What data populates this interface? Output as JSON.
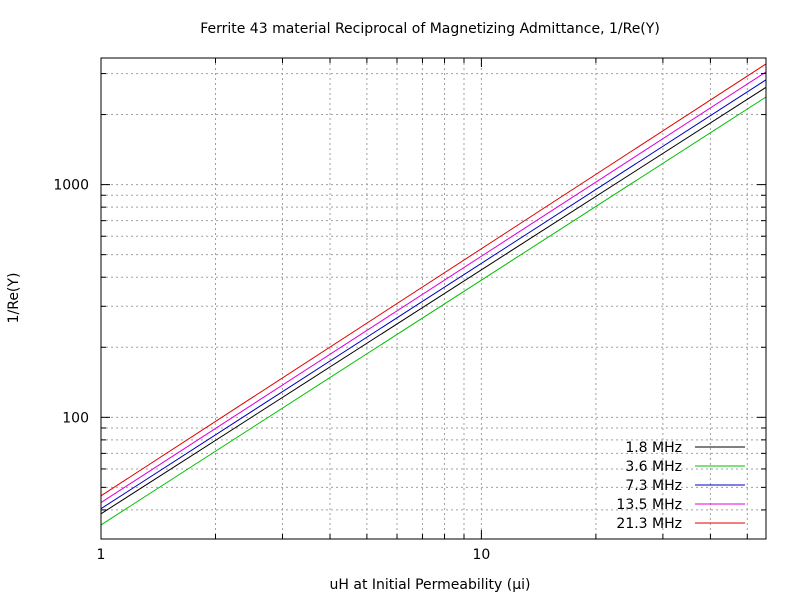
{
  "chart_data": {
    "type": "line",
    "title": "Ferrite 43 material Reciprocal of Magnetizing Admittance, 1/Re(Y)",
    "xlabel": "uH at Initial Permeability (µi)",
    "ylabel": "1/Re(Y)",
    "x_scale": "log",
    "y_scale": "log",
    "xlim": [
      1,
      56
    ],
    "ylim": [
      30,
      3500
    ],
    "grid": true,
    "legend_position": "bottom-right",
    "x_ticks": [
      {
        "value": 1,
        "label": "1"
      },
      {
        "value": 10,
        "label": "10"
      }
    ],
    "y_ticks": [
      {
        "value": 100,
        "label": "100"
      },
      {
        "value": 1000,
        "label": "1000"
      }
    ],
    "series": [
      {
        "name": "1.8 MHz",
        "color": "#000000",
        "x": [
          1,
          56
        ],
        "y": [
          38.5,
          2620
        ]
      },
      {
        "name": "3.6 MHz",
        "color": "#00c000",
        "x": [
          1,
          56
        ],
        "y": [
          34.5,
          2380
        ]
      },
      {
        "name": "7.3 MHz",
        "color": "#0000c0",
        "x": [
          1,
          56
        ],
        "y": [
          40.5,
          2820
        ]
      },
      {
        "name": "13.5 MHz",
        "color": "#e000e0",
        "x": [
          1,
          56
        ],
        "y": [
          43,
          3050
        ]
      },
      {
        "name": "21.3 MHz",
        "color": "#e00000",
        "x": [
          1,
          56
        ],
        "y": [
          46,
          3300
        ]
      }
    ]
  }
}
